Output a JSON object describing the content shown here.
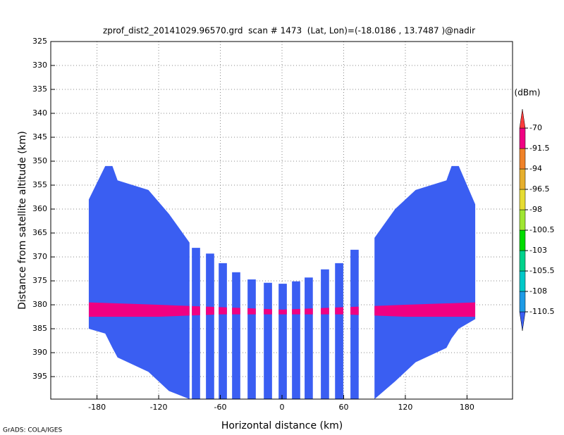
{
  "chart_data": {
    "type": "profile",
    "title": "zprof_dist2_20141029.96570.grd  scan # 1473  (Lat, Lon)=(-18.0186 , 13.7487 )@nadir",
    "x_label": "Horizontal distance (km)",
    "y_label": "Distance from satellite altitude (km)",
    "footer": "GrADS: COLA/IGES",
    "xlim": [
      -225,
      224.3
    ],
    "ylim": [
      325,
      399.7
    ],
    "y_inverted": true,
    "xticks": [
      -180,
      -120,
      -60,
      0,
      60,
      120,
      180
    ],
    "yticks": [
      325,
      330,
      335,
      340,
      345,
      350,
      355,
      360,
      365,
      370,
      375,
      380,
      385,
      390,
      395
    ],
    "grid": true,
    "swath_color": "#3a5ef2",
    "regions": [
      {
        "x": [
          -188,
          -172,
          -165,
          -160,
          -130,
          -110,
          -90
        ],
        "top": [
          358,
          351,
          351,
          354,
          356,
          361,
          367
        ],
        "bottom": [
          385,
          386,
          389,
          391,
          394,
          398,
          399.7
        ]
      },
      {
        "x": [
          90,
          110,
          130,
          160,
          165,
          172,
          188
        ],
        "top": [
          366,
          360,
          356,
          354,
          351,
          351,
          359
        ],
        "bottom": [
          399.7,
          396,
          392,
          389,
          387,
          385,
          383
        ]
      }
    ],
    "columns": {
      "x": [
        -83.7,
        -70,
        -57.6,
        -44.6,
        -29.5,
        -13.7,
        0.7,
        13.7,
        26,
        41.8,
        55.6,
        70.6
      ],
      "top": [
        368.1,
        369.3,
        371.3,
        373.2,
        374.7,
        375.4,
        375.6,
        375.1,
        374.3,
        372.6,
        371.3,
        368.5
      ],
      "bottom": [
        399.7,
        399.7,
        399.7,
        399.7,
        399.7,
        399.7,
        399.7,
        399.7,
        399.7,
        399.7,
        399.7,
        399.7
      ]
    },
    "bright_band": {
      "color": "#f00082",
      "x": [
        -188,
        -120,
        -60,
        0,
        60,
        120,
        188
      ],
      "top": [
        379.5,
        380,
        380.5,
        381,
        380.5,
        380,
        379.5
      ],
      "bottom": [
        382.5,
        382.5,
        382,
        382,
        382,
        382.5,
        382.5
      ]
    },
    "colorbar": {
      "label": "(dBm)",
      "levels": [
        -110.5,
        -108,
        -105.5,
        -103,
        -100.5,
        -98,
        -96.5,
        -94,
        -91.5,
        -70
      ],
      "colors": [
        "#3a5ef2",
        "#1e9be6",
        "#00c8c8",
        "#00d28c",
        "#00dc00",
        "#a0e632",
        "#e6dc32",
        "#e6af2d",
        "#f08228",
        "#f00082",
        "#fa3c3c"
      ]
    }
  }
}
